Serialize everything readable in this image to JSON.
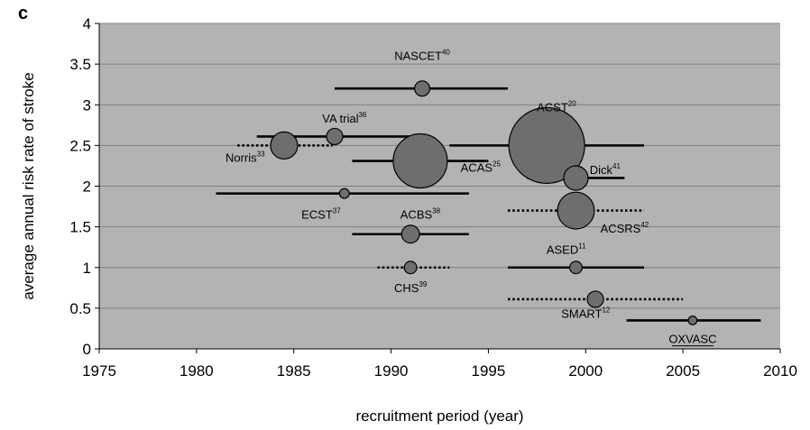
{
  "colors": {
    "plot_background": "#b3b3b3",
    "gridline": "#7f7f7f",
    "bubble_fill": "#6e6e6e",
    "line": "#000000"
  },
  "chart_data": {
    "type": "scatter",
    "panel_label": "c",
    "xlabel": "recruitment period (year)",
    "ylabel": "average annual risk rate of stroke",
    "xlim": [
      1975,
      2010
    ],
    "ylim": [
      0,
      4
    ],
    "xticks": [
      "1975",
      "1980",
      "1985",
      "1990",
      "1995",
      "2000",
      "2005",
      "2010"
    ],
    "yticks": [
      "0",
      "0.5",
      "1",
      "1.5",
      "2",
      "2.5",
      "3",
      "3.5",
      "4"
    ],
    "grid": "horizontal",
    "studies": [
      {
        "name": "NASCET",
        "ref": "40",
        "x": 1991.6,
        "y": 3.2,
        "start": 1987.1,
        "end": 1996.0,
        "line_style": "solid",
        "relative_size": 0.28,
        "label_x": 1991.6,
        "label_y": 3.55,
        "underline": false
      },
      {
        "name": "VA trial",
        "ref": "36",
        "x": 1987.1,
        "y": 2.61,
        "start": 1983.1,
        "end": 1991.1,
        "line_style": "solid",
        "relative_size": 0.3,
        "label_x": 1987.6,
        "label_y": 2.78,
        "underline": false
      },
      {
        "name": "Norris",
        "ref": "33",
        "x": 1984.5,
        "y": 2.5,
        "start": 1982.1,
        "end": 1987.0,
        "line_style": "dotted",
        "relative_size": 0.5,
        "label_x": 1982.5,
        "label_y": 2.3,
        "underline": false
      },
      {
        "name": "ACST",
        "ref": "20",
        "x": 1998.0,
        "y": 2.5,
        "start": 1993.0,
        "end": 2003.0,
        "line_style": "solid",
        "relative_size": 1.4,
        "label_x": 1998.5,
        "label_y": 2.92,
        "underline": false
      },
      {
        "name": "ACAS",
        "ref": "25",
        "x": 1991.5,
        "y": 2.31,
        "start": 1988.0,
        "end": 1995.0,
        "line_style": "solid",
        "relative_size": 1.0,
        "label_x": 1994.6,
        "label_y": 2.18,
        "underline": false
      },
      {
        "name": "Dick",
        "ref": "41",
        "x": 1999.5,
        "y": 2.1,
        "start": 1997.0,
        "end": 2002.0,
        "line_style": "solid",
        "relative_size": 0.45,
        "label_x": 2001.0,
        "label_y": 2.15,
        "underline": false
      },
      {
        "name": "ECST",
        "ref": "37",
        "x": 1987.6,
        "y": 1.91,
        "start": 1981.0,
        "end": 1994.0,
        "line_style": "solid",
        "relative_size": 0.18,
        "label_x": 1986.4,
        "label_y": 1.6,
        "underline": false
      },
      {
        "name": "ACSRS",
        "ref": "42",
        "x": 1999.5,
        "y": 1.7,
        "start": 1996.0,
        "end": 2003.0,
        "line_style": "dotted",
        "relative_size": 0.68,
        "label_x": 2002.0,
        "label_y": 1.43,
        "underline": false
      },
      {
        "name": "ACBS",
        "ref": "38",
        "x": 1991.0,
        "y": 1.41,
        "start": 1988.0,
        "end": 1994.0,
        "line_style": "solid",
        "relative_size": 0.33,
        "label_x": 1991.5,
        "label_y": 1.6,
        "underline": false
      },
      {
        "name": "ASED",
        "ref": "11",
        "x": 1999.5,
        "y": 1.0,
        "start": 1996.0,
        "end": 2003.0,
        "line_style": "solid",
        "relative_size": 0.23,
        "label_x": 1999.0,
        "label_y": 1.17,
        "underline": false
      },
      {
        "name": "CHS",
        "ref": "39",
        "x": 1991.0,
        "y": 1.0,
        "start": 1989.3,
        "end": 1993.0,
        "line_style": "dotted",
        "relative_size": 0.23,
        "label_x": 1991.0,
        "label_y": 0.7,
        "underline": false
      },
      {
        "name": "SMART",
        "ref": "12",
        "x": 2000.5,
        "y": 0.61,
        "start": 1996.0,
        "end": 2005.0,
        "line_style": "dotted",
        "relative_size": 0.3,
        "label_x": 2000.0,
        "label_y": 0.38,
        "underline": false
      },
      {
        "name": "OXVASC",
        "ref": "",
        "x": 2005.5,
        "y": 0.35,
        "start": 2002.1,
        "end": 2009.0,
        "line_style": "solid",
        "relative_size": 0.16,
        "label_x": 2005.5,
        "label_y": 0.07,
        "underline": true
      }
    ]
  }
}
